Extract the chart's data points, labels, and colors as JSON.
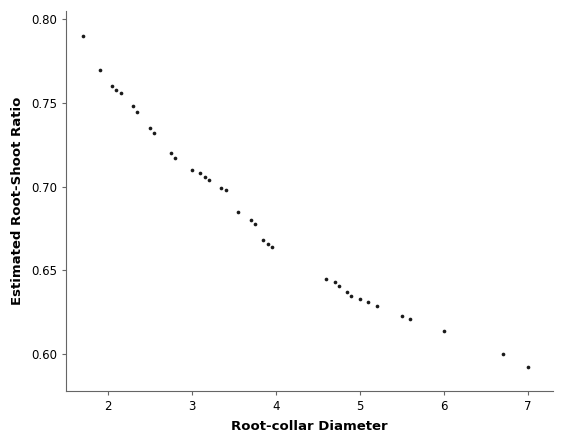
{
  "x": [
    1.7,
    1.9,
    2.05,
    2.1,
    2.15,
    2.3,
    2.35,
    2.5,
    2.55,
    2.75,
    2.8,
    3.0,
    3.1,
    3.15,
    3.2,
    3.35,
    3.4,
    3.55,
    3.7,
    3.75,
    3.85,
    3.9,
    3.95,
    4.6,
    4.7,
    4.75,
    4.85,
    4.9,
    5.0,
    5.1,
    5.2,
    5.5,
    5.6,
    6.0,
    6.7,
    7.0
  ],
  "y": [
    0.79,
    0.77,
    0.76,
    0.758,
    0.756,
    0.748,
    0.745,
    0.735,
    0.732,
    0.72,
    0.717,
    0.71,
    0.708,
    0.706,
    0.704,
    0.699,
    0.698,
    0.685,
    0.68,
    0.678,
    0.668,
    0.666,
    0.664,
    0.645,
    0.643,
    0.641,
    0.637,
    0.635,
    0.633,
    0.631,
    0.629,
    0.623,
    0.621,
    0.614,
    0.6,
    0.592
  ],
  "xlabel": "Root-collar Diameter",
  "ylabel": "Estimated Root-Shoot Ratio",
  "xlim": [
    1.5,
    7.3
  ],
  "ylim": [
    0.578,
    0.805
  ],
  "xticks": [
    2,
    3,
    4,
    5,
    6,
    7
  ],
  "yticks": [
    0.6,
    0.65,
    0.7,
    0.75,
    0.8
  ],
  "dot_color": "#1a1a1a",
  "dot_size": 7,
  "background_color": "#ffffff",
  "axis_color": "#666666",
  "label_fontsize": 9.5,
  "tick_fontsize": 8.5,
  "font_family": "DejaVu Sans"
}
